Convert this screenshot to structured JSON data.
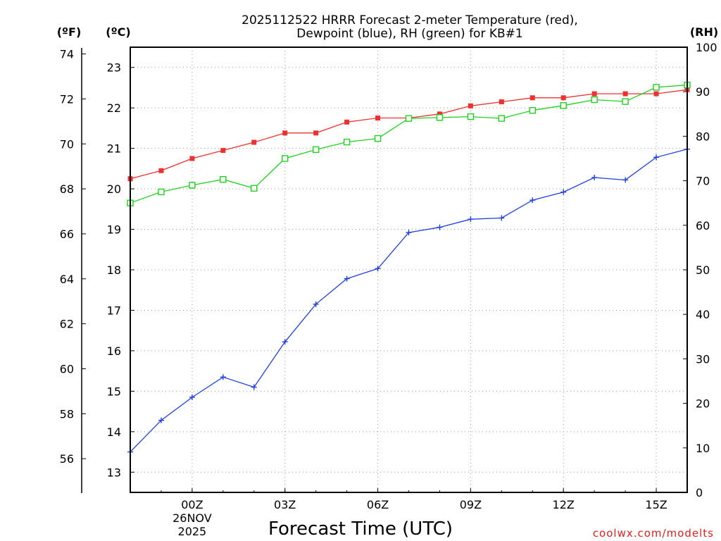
{
  "chart_data": {
    "type": "line",
    "title_line1": "2025112522 HRRR Forecast 2-meter Temperature (red),",
    "title_line2": "Dewpoint (blue), RH (green) for KB#1",
    "xlabel": "Forecast Time (UTC)",
    "credit": "coolwx.com/modelts",
    "units": {
      "fahrenheit": "(ºF)",
      "celsius": "(ºC)",
      "rh": "(RH)"
    },
    "x_hours": [
      22,
      23,
      24,
      25,
      26,
      27,
      28,
      29,
      30,
      31,
      32,
      33,
      34,
      35,
      36,
      37,
      38,
      39,
      40
    ],
    "xlim": [
      22,
      40
    ],
    "x_ticks": [
      {
        "hour": 24,
        "label": "00Z",
        "sub1": "26NOV",
        "sub2": "2025"
      },
      {
        "hour": 27,
        "label": "03Z"
      },
      {
        "hour": 30,
        "label": "06Z"
      },
      {
        "hour": 33,
        "label": "09Z"
      },
      {
        "hour": 36,
        "label": "12Z"
      },
      {
        "hour": 39,
        "label": "15Z"
      }
    ],
    "celsius_axis": {
      "ylim": [
        12.5,
        23.5
      ],
      "ticks": [
        "13",
        "14",
        "15",
        "16",
        "17",
        "18",
        "19",
        "20",
        "21",
        "22",
        "23"
      ]
    },
    "fahrenheit_axis": {
      "ylim": [
        54.5,
        74.3
      ],
      "ticks": [
        "56",
        "58",
        "60",
        "62",
        "64",
        "66",
        "68",
        "70",
        "72",
        "74"
      ]
    },
    "rh_axis": {
      "ylim": [
        0,
        100
      ],
      "ticks": [
        "0",
        "10",
        "20",
        "30",
        "40",
        "50",
        "60",
        "70",
        "80",
        "90",
        "100"
      ]
    },
    "series": [
      {
        "name": "Temperature",
        "axis": "celsius",
        "color": "#ee3030",
        "marker": "filled-square",
        "values": [
          20.25,
          20.45,
          20.75,
          20.95,
          21.15,
          21.38,
          21.38,
          21.65,
          21.75,
          21.75,
          21.85,
          22.05,
          22.15,
          22.25,
          22.25,
          22.35,
          22.35,
          22.35,
          22.45
        ]
      },
      {
        "name": "Dewpoint",
        "axis": "celsius",
        "color": "#2040e0",
        "marker": "plus",
        "values": [
          13.5,
          14.28,
          14.85,
          15.35,
          15.1,
          16.22,
          17.15,
          17.78,
          18.03,
          18.92,
          19.05,
          19.25,
          19.28,
          19.72,
          19.92,
          20.28,
          20.22,
          20.78,
          20.98
        ]
      },
      {
        "name": "RH",
        "axis": "rh",
        "color": "#20d020",
        "marker": "open-square",
        "values": [
          65,
          67.5,
          69,
          70.3,
          68.3,
          75,
          77,
          78.7,
          79.5,
          84,
          84.2,
          84.4,
          84,
          85.8,
          86.9,
          88.2,
          87.8,
          91,
          91.5
        ]
      }
    ]
  }
}
